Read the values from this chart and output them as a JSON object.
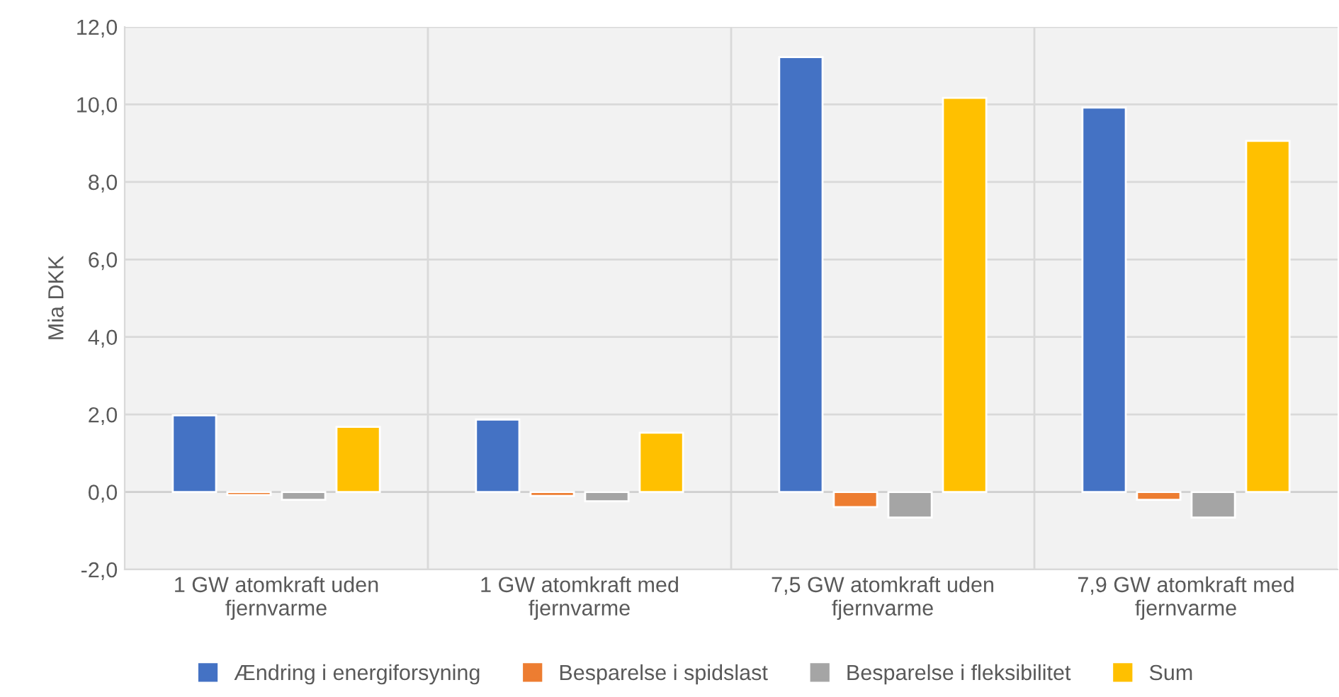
{
  "chart_data": {
    "type": "bar",
    "ylabel": "Mia DKK",
    "categories": [
      "1 GW atomkraft uden\nfjernvarme",
      "1 GW atomkraft med\nfjernvarme",
      "7,5 GW atomkraft uden\nfjernvarme",
      "7,9 GW atomkraft med\nfjernvarme"
    ],
    "series": [
      {
        "name": "Ændring i energiforsyning",
        "color": "#4472c4",
        "values": [
          1.98,
          1.87,
          11.22,
          9.92
        ]
      },
      {
        "name": "Besparelse i spidslast",
        "color": "#ed7d31",
        "values": [
          -0.08,
          -0.1,
          -0.39,
          -0.2
        ]
      },
      {
        "name": "Besparelse i fleksibilitet",
        "color": "#a5a5a5",
        "values": [
          -0.2,
          -0.24,
          -0.66,
          -0.66
        ]
      },
      {
        "name": "Sum",
        "color": "#ffc000",
        "values": [
          1.68,
          1.53,
          10.17,
          9.06
        ]
      }
    ],
    "ylim": [
      -2,
      12
    ],
    "yticks": [
      {
        "value": -2,
        "label": "-2,0"
      },
      {
        "value": 0,
        "label": "0,0"
      },
      {
        "value": 2,
        "label": "2,0"
      },
      {
        "value": 4,
        "label": "4,0"
      },
      {
        "value": 6,
        "label": "6,0"
      },
      {
        "value": 8,
        "label": "8,0"
      },
      {
        "value": 10,
        "label": "10,0"
      },
      {
        "value": 12,
        "label": "12,0"
      }
    ],
    "grid": true,
    "legend": "bottom"
  }
}
